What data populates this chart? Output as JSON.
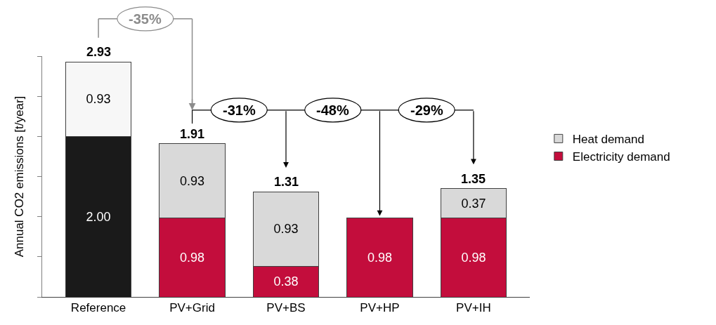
{
  "chart_data": {
    "type": "bar",
    "stacked": true,
    "ylabel": "Annual CO2 emissions [t/year]",
    "categories": [
      "Reference",
      "PV+Grid",
      "PV+BS",
      "PV+HP",
      "PV+IH"
    ],
    "series": [
      {
        "name": "Electricity demand",
        "color": "#c30d3c",
        "colors": [
          "#1a1a1a",
          "#c30d3c",
          "#c30d3c",
          "#c30d3c",
          "#c30d3c"
        ],
        "values": [
          2.0,
          0.98,
          0.38,
          0.98,
          0.98
        ],
        "value_labels": [
          "2.00",
          "0.98",
          "0.38",
          "0.98",
          "0.98"
        ]
      },
      {
        "name": "Heat demand",
        "color": "#d9d9d9",
        "colors": [
          "#f7f7f7",
          "#d9d9d9",
          "#d9d9d9",
          "#d9d9d9",
          "#d9d9d9"
        ],
        "values": [
          0.93,
          0.93,
          0.93,
          null,
          0.37
        ],
        "value_labels": [
          "0.93",
          "0.93",
          "0.93",
          null,
          "0.37"
        ]
      }
    ],
    "totals": [
      "2.93",
      "1.91",
      "1.31",
      null,
      "1.35"
    ],
    "annotations": [
      "-35%",
      "-31%",
      "-48%",
      "-29%"
    ],
    "ylim": [
      0,
      3.0
    ],
    "yticks": [
      {
        "value": 0,
        "label": null
      },
      {
        "value": 0.5,
        "label": null
      },
      {
        "value": 1.0,
        "label": null
      },
      {
        "value": 1.5,
        "label": null
      },
      {
        "value": 2.0,
        "label": null
      },
      {
        "value": 2.5,
        "label": null
      },
      {
        "value": 3.0,
        "label": null
      }
    ],
    "tick_labels": "x",
    "grid": false,
    "legend": "right"
  }
}
